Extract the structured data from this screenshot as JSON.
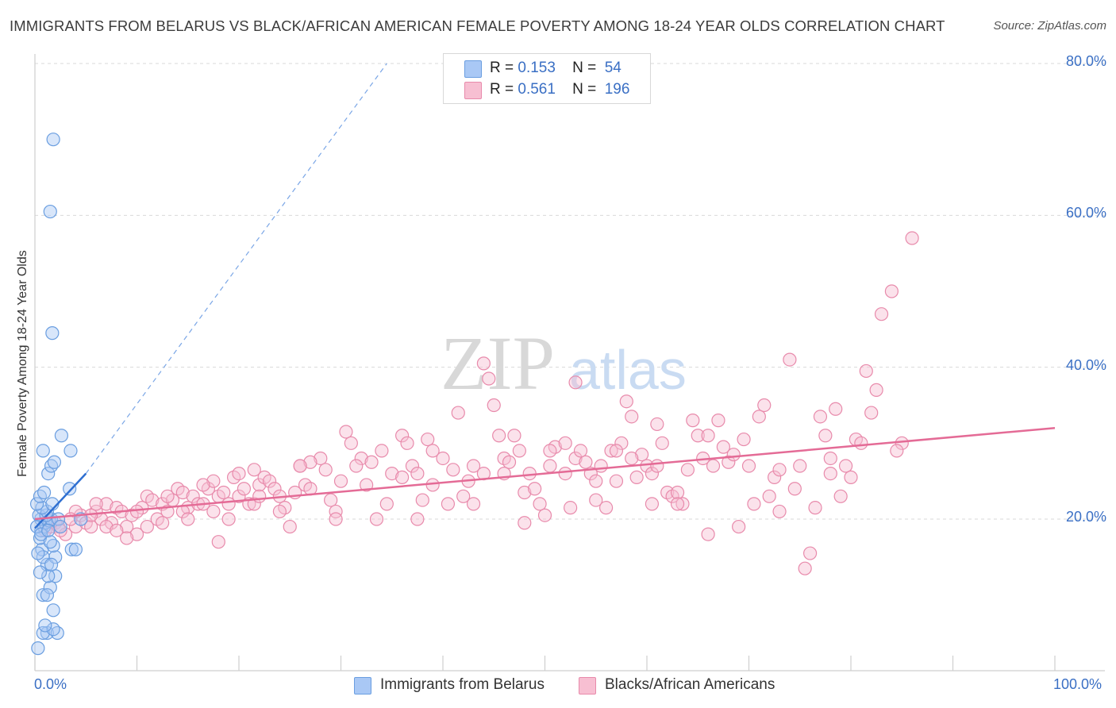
{
  "title": "IMMIGRANTS FROM BELARUS VS BLACK/AFRICAN AMERICAN FEMALE POVERTY AMONG 18-24 YEAR OLDS CORRELATION CHART",
  "source": "Source: ZipAtlas.com",
  "watermark": {
    "zip": "ZIP",
    "atlas": "atlas"
  },
  "legend": {
    "series1": {
      "r_label": "R =",
      "r_value": "0.153",
      "n_label": "N =",
      "n_value": "54"
    },
    "series2": {
      "r_label": "R =",
      "r_value": "0.561",
      "n_label": "N =",
      "n_value": "196"
    }
  },
  "colors": {
    "blue_fill": "#a9c8f5",
    "blue_stroke": "#6a9ee0",
    "blue_line": "#2f6fd1",
    "pink_fill": "#f7bfd2",
    "pink_stroke": "#e88aab",
    "pink_line": "#e46b96",
    "axis_text": "#3a6fc4",
    "grid": "#d9d9d9"
  },
  "chart_data": {
    "type": "scatter",
    "title": "IMMIGRANTS FROM BELARUS VS BLACK/AFRICAN AMERICAN FEMALE POVERTY AMONG 18-24 YEAR OLDS CORRELATION CHART",
    "xlabel": "",
    "ylabel": "Female Poverty Among 18-24 Year Olds",
    "xlim": [
      0,
      100
    ],
    "ylim": [
      0,
      82
    ],
    "x_tick_labels": [
      "0.0%",
      "100.0%"
    ],
    "y_ticks": [
      20,
      40,
      60,
      80
    ],
    "y_tick_labels": [
      "20.0%",
      "40.0%",
      "60.0%",
      "80.0%"
    ],
    "grid": true,
    "legend_position": "top-center",
    "series": [
      {
        "name": "Immigrants from Belarus",
        "color": "#a9c8f5",
        "points": [
          [
            0.3,
            3.0
          ],
          [
            1.2,
            5.0
          ],
          [
            1.8,
            8.0
          ],
          [
            0.8,
            10.0
          ],
          [
            1.5,
            11.0
          ],
          [
            1.2,
            14.0
          ],
          [
            2.0,
            15.0
          ],
          [
            0.7,
            16.0
          ],
          [
            1.8,
            16.5
          ],
          [
            3.6,
            16.0
          ],
          [
            4.0,
            16.0
          ],
          [
            0.5,
            17.5
          ],
          [
            1.5,
            17.0
          ],
          [
            0.6,
            18.5
          ],
          [
            0.9,
            19.0
          ],
          [
            1.0,
            19.5
          ],
          [
            1.4,
            19.8
          ],
          [
            0.6,
            20.0
          ],
          [
            1.6,
            20.0
          ],
          [
            2.3,
            20.0
          ],
          [
            0.4,
            20.5
          ],
          [
            1.1,
            20.5
          ],
          [
            1.2,
            21.0
          ],
          [
            0.7,
            21.5
          ],
          [
            0.2,
            22.0
          ],
          [
            1.7,
            22.0
          ],
          [
            0.5,
            23.0
          ],
          [
            0.9,
            23.5
          ],
          [
            3.4,
            24.0
          ],
          [
            1.3,
            26.0
          ],
          [
            1.6,
            27.0
          ],
          [
            1.9,
            27.5
          ],
          [
            3.5,
            29.0
          ],
          [
            0.8,
            29.0
          ],
          [
            2.6,
            31.0
          ],
          [
            1.7,
            44.5
          ],
          [
            1.5,
            60.5
          ],
          [
            1.8,
            70.0
          ],
          [
            0.2,
            19.0
          ],
          [
            0.8,
            15.0
          ],
          [
            0.3,
            15.5
          ],
          [
            2.0,
            12.5
          ],
          [
            1.3,
            12.5
          ],
          [
            1.6,
            14.0
          ],
          [
            0.5,
            13.0
          ],
          [
            1.2,
            10.0
          ],
          [
            0.8,
            5.0
          ],
          [
            2.2,
            5.0
          ],
          [
            1.8,
            5.5
          ],
          [
            1.0,
            6.0
          ],
          [
            0.6,
            18.0
          ],
          [
            1.3,
            18.5
          ],
          [
            2.5,
            19.0
          ],
          [
            4.5,
            20.0
          ]
        ]
      },
      {
        "name": "Blacks/African Americans",
        "color": "#f7bfd2",
        "points": [
          [
            1.0,
            18.5
          ],
          [
            1.5,
            19.0
          ],
          [
            2.0,
            19.5
          ],
          [
            2.3,
            19.0
          ],
          [
            3.0,
            18.0
          ],
          [
            4.0,
            19.0
          ],
          [
            4.5,
            20.5
          ],
          [
            5.0,
            19.5
          ],
          [
            5.5,
            19.0
          ],
          [
            6.0,
            21.0
          ],
          [
            6.5,
            20.0
          ],
          [
            7.0,
            22.0
          ],
          [
            7.5,
            19.5
          ],
          [
            8.0,
            21.5
          ],
          [
            8.5,
            21.0
          ],
          [
            9.0,
            19.0
          ],
          [
            9.5,
            20.5
          ],
          [
            10.0,
            18.0
          ],
          [
            10.5,
            21.5
          ],
          [
            11.0,
            23.0
          ],
          [
            11.5,
            22.5
          ],
          [
            12.0,
            20.0
          ],
          [
            12.5,
            22.0
          ],
          [
            13.0,
            21.0
          ],
          [
            13.5,
            22.5
          ],
          [
            14.0,
            24.0
          ],
          [
            14.5,
            23.5
          ],
          [
            15.0,
            21.5
          ],
          [
            15.5,
            23.0
          ],
          [
            16.0,
            22.0
          ],
          [
            16.5,
            22.0
          ],
          [
            17.0,
            24.0
          ],
          [
            17.5,
            25.0
          ],
          [
            18.0,
            23.0
          ],
          [
            18.5,
            23.5
          ],
          [
            19.0,
            22.0
          ],
          [
            19.5,
            25.5
          ],
          [
            20.0,
            23.0
          ],
          [
            20.5,
            24.0
          ],
          [
            21.0,
            22.0
          ],
          [
            21.5,
            26.5
          ],
          [
            22.0,
            24.5
          ],
          [
            22.5,
            25.5
          ],
          [
            23.0,
            25.0
          ],
          [
            23.5,
            24.0
          ],
          [
            24.0,
            23.0
          ],
          [
            24.5,
            21.5
          ],
          [
            25.0,
            19.0
          ],
          [
            25.5,
            23.5
          ],
          [
            26.0,
            27.0
          ],
          [
            26.5,
            24.5
          ],
          [
            27.0,
            24.0
          ],
          [
            28.0,
            28.0
          ],
          [
            28.5,
            26.5
          ],
          [
            29.0,
            22.5
          ],
          [
            29.5,
            21.0
          ],
          [
            30.0,
            25.0
          ],
          [
            30.5,
            31.5
          ],
          [
            31.0,
            30.0
          ],
          [
            32.0,
            28.0
          ],
          [
            32.5,
            24.5
          ],
          [
            33.0,
            27.5
          ],
          [
            34.0,
            29.0
          ],
          [
            34.5,
            22.0
          ],
          [
            35.0,
            26.0
          ],
          [
            36.0,
            31.0
          ],
          [
            36.5,
            30.0
          ],
          [
            37.0,
            27.0
          ],
          [
            37.5,
            26.0
          ],
          [
            38.0,
            22.5
          ],
          [
            38.5,
            30.5
          ],
          [
            39.0,
            24.5
          ],
          [
            40.0,
            28.0
          ],
          [
            40.5,
            22.0
          ],
          [
            41.0,
            26.5
          ],
          [
            41.5,
            34.0
          ],
          [
            42.0,
            23.0
          ],
          [
            42.5,
            25.0
          ],
          [
            43.0,
            27.0
          ],
          [
            44.0,
            40.5
          ],
          [
            44.5,
            38.5
          ],
          [
            45.0,
            35.0
          ],
          [
            45.5,
            31.0
          ],
          [
            46.0,
            28.0
          ],
          [
            46.5,
            27.5
          ],
          [
            47.0,
            31.0
          ],
          [
            47.5,
            29.0
          ],
          [
            48.0,
            23.5
          ],
          [
            48.5,
            26.0
          ],
          [
            49.0,
            24.0
          ],
          [
            49.5,
            22.0
          ],
          [
            50.0,
            20.5
          ],
          [
            50.5,
            27.0
          ],
          [
            51.0,
            29.5
          ],
          [
            52.0,
            26.0
          ],
          [
            52.5,
            21.5
          ],
          [
            53.0,
            28.0
          ],
          [
            53.5,
            29.0
          ],
          [
            54.0,
            27.5
          ],
          [
            54.5,
            26.0
          ],
          [
            55.0,
            25.0
          ],
          [
            55.5,
            27.0
          ],
          [
            56.0,
            21.5
          ],
          [
            56.5,
            29.0
          ],
          [
            57.0,
            25.0
          ],
          [
            57.5,
            30.0
          ],
          [
            58.0,
            35.5
          ],
          [
            58.5,
            33.5
          ],
          [
            59.0,
            25.5
          ],
          [
            59.5,
            28.5
          ],
          [
            60.0,
            27.0
          ],
          [
            60.5,
            26.0
          ],
          [
            61.0,
            32.5
          ],
          [
            61.5,
            30.0
          ],
          [
            62.0,
            23.5
          ],
          [
            62.5,
            23.0
          ],
          [
            63.0,
            23.5
          ],
          [
            63.5,
            22.0
          ],
          [
            64.0,
            26.5
          ],
          [
            64.5,
            33.0
          ],
          [
            65.0,
            31.0
          ],
          [
            65.5,
            28.0
          ],
          [
            66.0,
            31.0
          ],
          [
            66.5,
            27.0
          ],
          [
            67.0,
            33.0
          ],
          [
            67.5,
            29.5
          ],
          [
            68.0,
            27.5
          ],
          [
            68.5,
            28.5
          ],
          [
            69.0,
            19.0
          ],
          [
            69.5,
            30.5
          ],
          [
            70.0,
            27.0
          ],
          [
            71.0,
            33.5
          ],
          [
            71.5,
            35.0
          ],
          [
            72.0,
            23.0
          ],
          [
            72.5,
            25.5
          ],
          [
            73.0,
            26.5
          ],
          [
            74.0,
            41.0
          ],
          [
            74.5,
            24.0
          ],
          [
            75.0,
            27.0
          ],
          [
            75.5,
            13.5
          ],
          [
            76.0,
            15.5
          ],
          [
            76.5,
            21.5
          ],
          [
            77.0,
            33.5
          ],
          [
            77.5,
            31.0
          ],
          [
            78.0,
            28.0
          ],
          [
            78.5,
            34.5
          ],
          [
            79.0,
            23.0
          ],
          [
            79.5,
            27.0
          ],
          [
            80.0,
            25.5
          ],
          [
            80.5,
            30.5
          ],
          [
            81.0,
            30.0
          ],
          [
            81.5,
            39.5
          ],
          [
            82.0,
            34.0
          ],
          [
            82.5,
            37.0
          ],
          [
            83.0,
            47.0
          ],
          [
            84.0,
            50.0
          ],
          [
            85.0,
            30.0
          ],
          [
            86.0,
            57.0
          ],
          [
            60.5,
            22.0
          ],
          [
            58.5,
            28.0
          ],
          [
            33.5,
            20.0
          ],
          [
            37.5,
            20.0
          ],
          [
            43.0,
            22.0
          ],
          [
            20.0,
            26.0
          ],
          [
            19.0,
            20.0
          ],
          [
            16.5,
            24.5
          ],
          [
            14.5,
            21.0
          ],
          [
            12.5,
            19.5
          ],
          [
            9.0,
            17.5
          ],
          [
            7.0,
            19.0
          ],
          [
            5.5,
            20.5
          ],
          [
            4.0,
            21.0
          ],
          [
            3.5,
            20.0
          ],
          [
            2.5,
            18.5
          ],
          [
            55.0,
            22.5
          ],
          [
            53.0,
            38.0
          ],
          [
            46.0,
            26.0
          ],
          [
            39.0,
            29.0
          ],
          [
            31.5,
            27.0
          ],
          [
            27.0,
            27.5
          ],
          [
            29.5,
            20.0
          ],
          [
            24.0,
            21.0
          ],
          [
            21.5,
            22.0
          ],
          [
            18.0,
            17.0
          ],
          [
            17.5,
            21.0
          ],
          [
            15.0,
            20.0
          ],
          [
            10.0,
            21.0
          ],
          [
            8.0,
            18.5
          ],
          [
            6.0,
            22.0
          ],
          [
            48.0,
            19.5
          ],
          [
            44.0,
            26.0
          ],
          [
            50.5,
            29.0
          ],
          [
            57.0,
            29.0
          ],
          [
            63.0,
            22.0
          ],
          [
            70.5,
            22.0
          ],
          [
            78.0,
            26.0
          ],
          [
            84.5,
            29.0
          ],
          [
            66.0,
            18.0
          ],
          [
            73.0,
            21.0
          ],
          [
            61.0,
            27.0
          ],
          [
            52.0,
            30.0
          ],
          [
            36.0,
            25.5
          ],
          [
            26.0,
            27.0
          ],
          [
            22.0,
            23.0
          ],
          [
            13.0,
            23.0
          ],
          [
            11.0,
            19.0
          ]
        ]
      }
    ],
    "trendlines": [
      {
        "series": "Immigrants from Belarus",
        "from": [
          0,
          18.8
        ],
        "to": [
          5,
          26.0
        ],
        "extended_to": [
          34.5,
          80.0
        ]
      },
      {
        "series": "Blacks/African Americans",
        "from": [
          0,
          20.0
        ],
        "to": [
          100,
          32.0
        ]
      }
    ]
  },
  "bottom_legend": [
    "Immigrants from Belarus",
    "Blacks/African Americans"
  ]
}
